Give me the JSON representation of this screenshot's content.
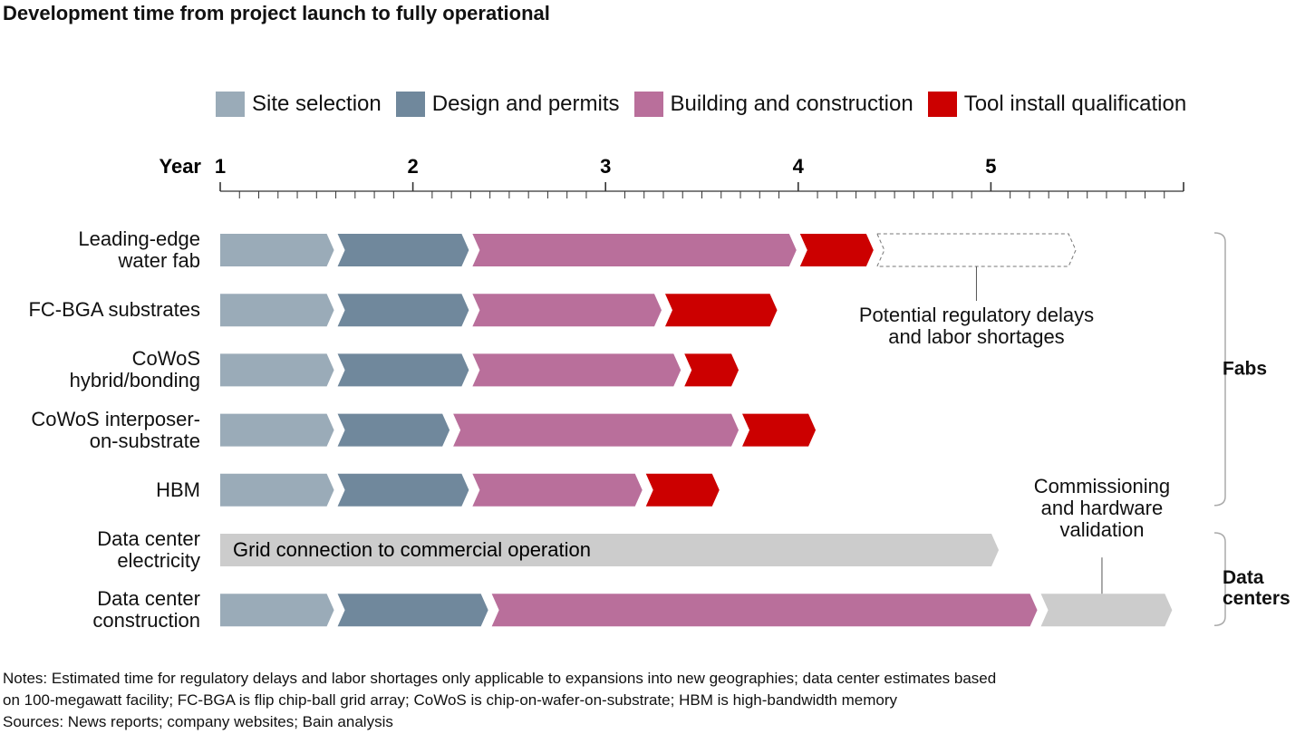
{
  "chart_data": {
    "type": "gantt",
    "title": "Development time from project launch to fully operational",
    "xlabel": "Year",
    "categories": [
      "Leading-edge\nwater fab",
      "FC-BGA substrates",
      "CoWoS\nhybrid/bonding",
      "CoWoS interposer-\non-substrate",
      "HBM",
      "Data center\nelectricity",
      "Data center\nconstruction"
    ],
    "group_labels": [
      "Fabs",
      "Data\ncenters"
    ],
    "series": [
      {
        "name": "Site selection",
        "color": "#9aabb8",
        "values": [
          0.6,
          0.6,
          0.6,
          0.6,
          0.6,
          null,
          0.6
        ]
      },
      {
        "name": "Design and permits",
        "color": "#70889c",
        "values": [
          0.7,
          0.7,
          0.7,
          0.6,
          0.7,
          null,
          0.8
        ]
      },
      {
        "name": "Building and construction",
        "color": "#b96f9b",
        "values": [
          1.7,
          1.0,
          1.1,
          1.5,
          0.9,
          null,
          2.85
        ]
      },
      {
        "name": "Tool install qualification",
        "color": "#cc0000",
        "values": [
          0.4,
          0.6,
          0.3,
          0.4,
          0.4,
          null,
          null
        ]
      },
      {
        "name": "Potential regulatory delays\nand labor shortages",
        "color": "#ffffff",
        "style": "dashed",
        "legend": false,
        "values": [
          1.05,
          null,
          null,
          null,
          null,
          null,
          null
        ]
      },
      {
        "name": "Grid connection to commercial operation",
        "color": "#cccccc",
        "legend": false,
        "label_inside": true,
        "values": [
          null,
          null,
          null,
          null,
          null,
          4.05,
          null
        ]
      },
      {
        "name": "Commissioning\nand hardware\nvalidation",
        "color": "#cccccc",
        "legend": false,
        "values": [
          null,
          null,
          null,
          null,
          null,
          null,
          0.7
        ]
      }
    ],
    "xlim": [
      1,
      6
    ],
    "xticks": [
      1,
      2,
      3,
      4,
      5
    ],
    "xminorticks": [
      1,
      1.1,
      1.2,
      1.3,
      1.4,
      1.5,
      1.6,
      1.7,
      1.8,
      1.9,
      2,
      2.1,
      2.2,
      2.3,
      2.4,
      2.5,
      2.6,
      2.7,
      2.8,
      2.9,
      3,
      3.1,
      3.2,
      3.3,
      3.4,
      3.5,
      3.6,
      3.7,
      3.8,
      3.9,
      4,
      4.1,
      4.2,
      4.3,
      4.4,
      4.5,
      4.6,
      4.7,
      4.8,
      4.9,
      5,
      5.1,
      5.2,
      5.3,
      5.4,
      5.5,
      5.6,
      5.7,
      5.8,
      5.9,
      6
    ],
    "notes": "Notes: Estimated time for regulatory delays and labor shortages only applicable to expansions into new geographies; data center estimates based\non 100-megawatt facility; FC-BGA is flip chip-ball grid array; CoWoS is chip-on-wafer-on-substrate; HBM is high-bandwidth memory",
    "sources": "Sources: News reports; company websites; Bain analysis"
  }
}
